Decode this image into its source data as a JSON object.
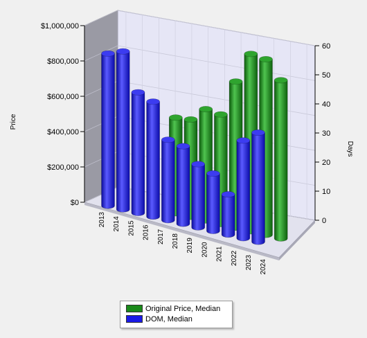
{
  "chart_data": {
    "type": "bar",
    "title": "",
    "categories": [
      "2013",
      "2014",
      "2015",
      "2016",
      "2017",
      "2018",
      "2019",
      "2020",
      "2021",
      "2022",
      "2023",
      "2024"
    ],
    "y_left_label": "Price",
    "y_right_label": "Days",
    "y_left_ticks": [
      "$0",
      "$200,000",
      "$400,000",
      "$600,000",
      "$800,000",
      "$1,000,000"
    ],
    "y_right_ticks": [
      "0",
      "10",
      "20",
      "30",
      "40",
      "50",
      "60"
    ],
    "y_left_range": [
      0,
      1000000
    ],
    "y_right_range": [
      0,
      60
    ],
    "legend_position": "bottom",
    "grid": true,
    "series": [
      {
        "name": "Original Price, Median",
        "axis": "left",
        "color": "#1a8a1a",
        "values": [
          null,
          null,
          null,
          null,
          550000,
          560000,
          640000,
          630000,
          840000,
          1020000,
          1010000,
          910000
        ]
      },
      {
        "name": "DOM, Median",
        "axis": "right",
        "color": "#1a1ae6",
        "values": [
          53,
          55,
          42,
          40,
          28,
          27,
          22,
          20,
          14,
          34,
          38,
          null
        ]
      }
    ]
  }
}
